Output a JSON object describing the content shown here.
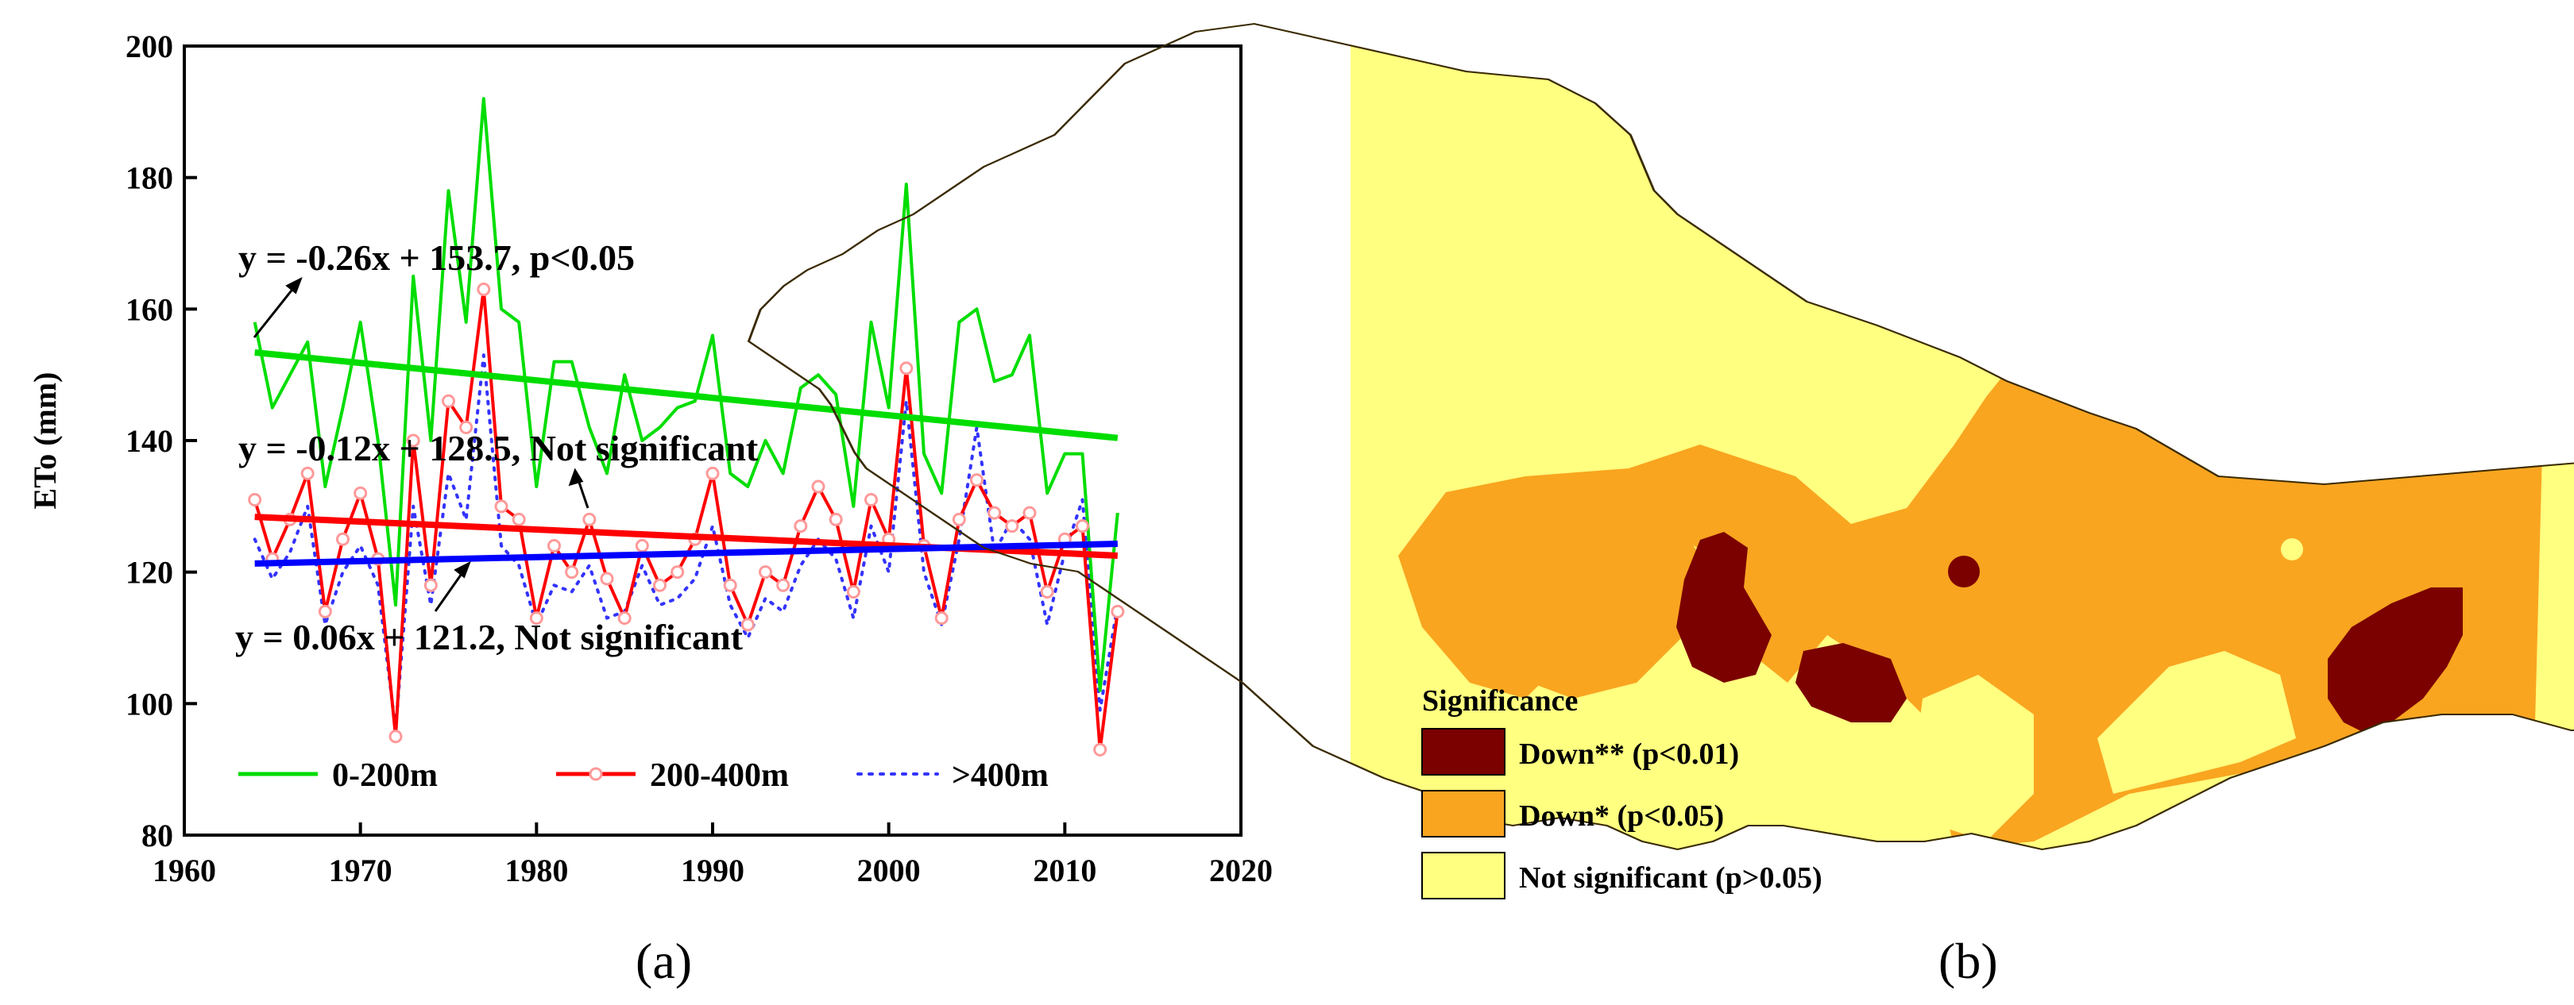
{
  "chart_data": [
    {
      "panel": "(a)",
      "type": "line",
      "title": "",
      "xlabel": "",
      "ylabel": "ETo (mm)",
      "xlim": [
        1960,
        2020
      ],
      "ylim": [
        80,
        200
      ],
      "xticks": [
        1960,
        1970,
        1980,
        1990,
        2000,
        2010,
        2020
      ],
      "yticks": [
        80,
        100,
        120,
        140,
        160,
        180,
        200
      ],
      "x": [
        1964,
        1965,
        1966,
        1967,
        1968,
        1969,
        1970,
        1971,
        1972,
        1973,
        1974,
        1975,
        1976,
        1977,
        1978,
        1979,
        1980,
        1981,
        1982,
        1983,
        1984,
        1985,
        1986,
        1987,
        1988,
        1989,
        1990,
        1991,
        1992,
        1993,
        1994,
        1995,
        1996,
        1997,
        1998,
        1999,
        2000,
        2001,
        2002,
        2003,
        2004,
        2005,
        2006,
        2007,
        2008,
        2009,
        2010,
        2011,
        2012,
        2013
      ],
      "series": [
        {
          "name": "0-200m",
          "color": "#00dd00",
          "style": "solid",
          "values": [
            158,
            145,
            150,
            155,
            133,
            145,
            158,
            140,
            115,
            165,
            140,
            178,
            158,
            192,
            160,
            158,
            133,
            152,
            152,
            142,
            135,
            150,
            140,
            142,
            145,
            146,
            156,
            135,
            133,
            140,
            135,
            148,
            150,
            147,
            130,
            158,
            145,
            179,
            138,
            132,
            158,
            160,
            149,
            150,
            156,
            132,
            138,
            138,
            102,
            129
          ]
        },
        {
          "name": "200-400m",
          "color": "#ff0000",
          "style": "line-circle",
          "values": [
            131,
            122,
            128,
            135,
            114,
            125,
            132,
            122,
            95,
            140,
            118,
            146,
            142,
            163,
            130,
            128,
            113,
            124,
            120,
            128,
            119,
            113,
            124,
            118,
            120,
            125,
            135,
            118,
            112,
            120,
            118,
            127,
            133,
            128,
            117,
            131,
            125,
            151,
            124,
            113,
            128,
            134,
            129,
            127,
            129,
            117,
            125,
            127,
            93,
            114
          ]
        },
        {
          "name": ">400m",
          "color": "#3333ff",
          "style": "dotted",
          "values": [
            125,
            119,
            123,
            130,
            112,
            120,
            124,
            118,
            96,
            130,
            115,
            135,
            128,
            153,
            124,
            121,
            112,
            118,
            117,
            121,
            113,
            114,
            121,
            115,
            116,
            119,
            127,
            115,
            110,
            116,
            114,
            121,
            125,
            122,
            113,
            127,
            120,
            146,
            120,
            112,
            125,
            142,
            123,
            128,
            125,
            112,
            123,
            131,
            99,
            115
          ]
        }
      ],
      "trends": [
        {
          "color": "#00dd00",
          "y_start": 153.4,
          "y_end": 140.4,
          "label": "y = -0.26x + 153.7, p<0.05"
        },
        {
          "color": "#ff0000",
          "y_start": 128.4,
          "y_end": 122.5,
          "label": "y = -0.12x + 128.5, Not significant"
        },
        {
          "color": "#0000ff",
          "y_start": 121.3,
          "y_end": 124.3,
          "label": "y = 0.06x + 121.2, Not significant"
        }
      ]
    },
    {
      "panel": "(b)",
      "type": "map",
      "legend_title": "Significance",
      "legend": [
        {
          "label": "Down** (p<0.01)",
          "color": "#7b0000"
        },
        {
          "label": "Down* (p<0.05)",
          "color": "#f9a520"
        },
        {
          "label": "Not significant (p>0.05)",
          "color": "#ffff80"
        }
      ]
    }
  ]
}
